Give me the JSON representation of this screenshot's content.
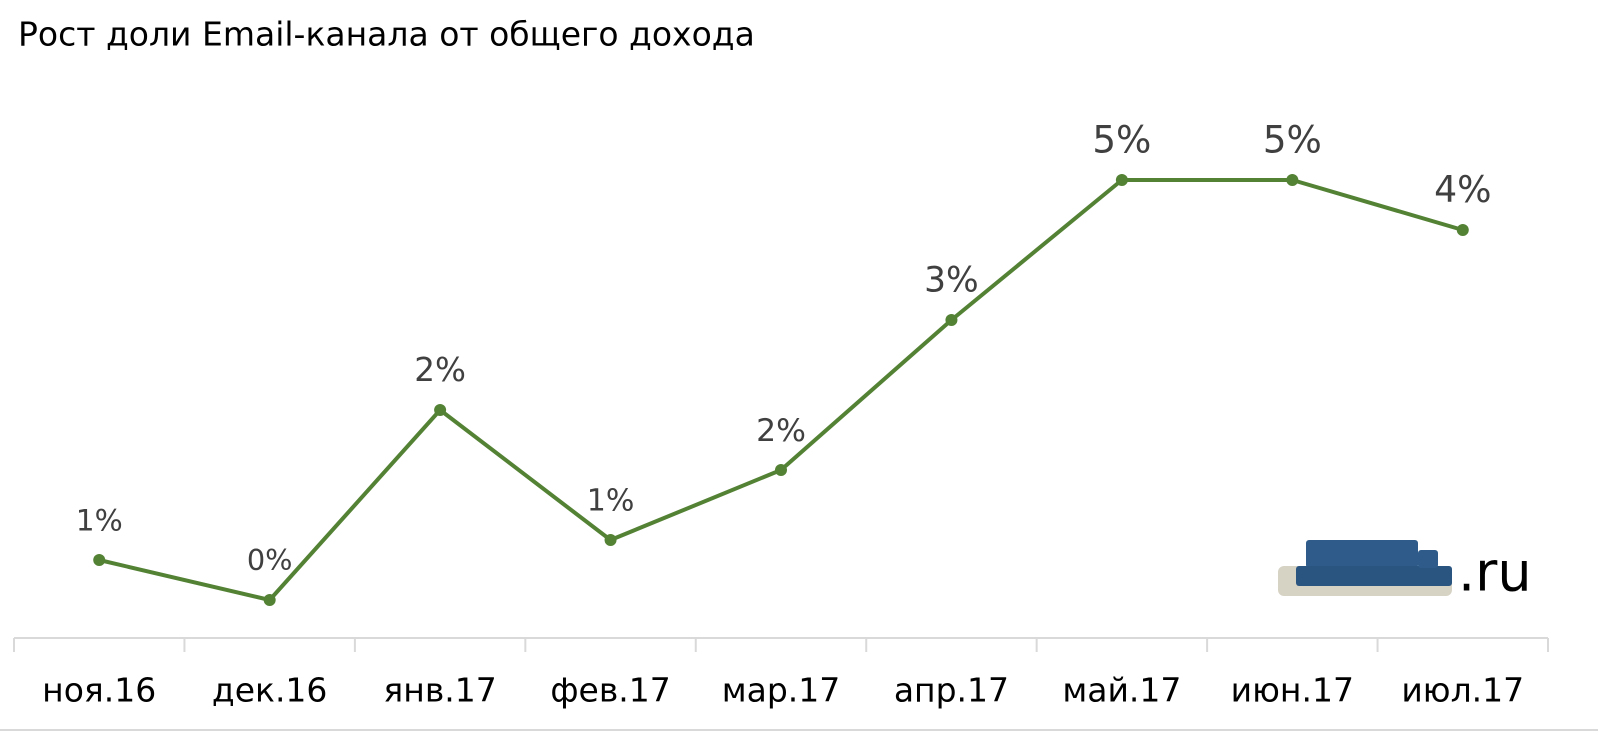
{
  "chart_data": {
    "type": "line",
    "title": "Рост доли Email-канала от общего дохода",
    "categories": [
      "ноя.16",
      "дек.16",
      "янв.17",
      "фев.17",
      "мар.17",
      "апр.17",
      "май.17",
      "июн.17",
      "июл.17"
    ],
    "series": [
      {
        "color": "#548235",
        "values": [
          0.8,
          0.4,
          2.3,
          1.0,
          1.7,
          3.2,
          4.6,
          4.6,
          4.1
        ],
        "value_labels": [
          "1%",
          "0%",
          "2%",
          "1%",
          "2%",
          "3%",
          "5%",
          "5%",
          "4%"
        ]
      }
    ],
    "ylim": [
      0,
      5
    ],
    "logo": ".ru"
  }
}
